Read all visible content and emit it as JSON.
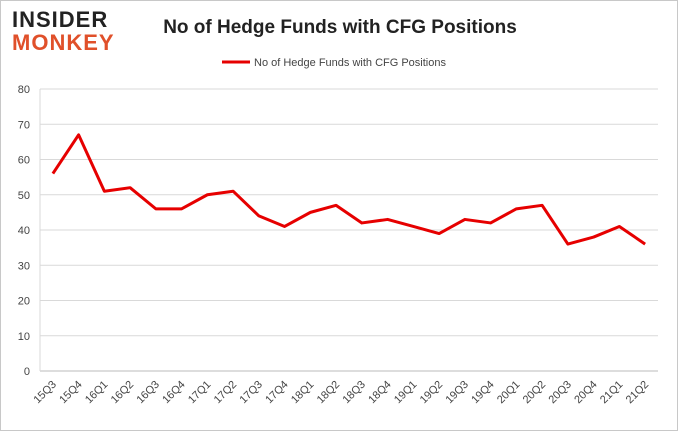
{
  "logo": {
    "line1": "INSIDER",
    "line2": "MONKEY"
  },
  "chart_data": {
    "type": "line",
    "title": "No of Hedge Funds with CFG Positions",
    "categories": [
      "15Q3",
      "15Q4",
      "16Q1",
      "16Q2",
      "16Q3",
      "16Q4",
      "17Q1",
      "17Q2",
      "17Q3",
      "17Q4",
      "18Q1",
      "18Q2",
      "18Q3",
      "18Q4",
      "19Q1",
      "19Q2",
      "19Q3",
      "19Q4",
      "20Q1",
      "20Q2",
      "20Q3",
      "20Q4",
      "21Q1",
      "21Q2"
    ],
    "series": [
      {
        "name": "No of Hedge Funds with CFG Positions",
        "color": "#e60000",
        "values": [
          56,
          67,
          51,
          52,
          46,
          46,
          50,
          51,
          44,
          41,
          45,
          47,
          42,
          43,
          41,
          39,
          43,
          42,
          46,
          47,
          36,
          38,
          41,
          36
        ]
      }
    ],
    "ylim": [
      0,
      80
    ],
    "yticks": [
      0,
      10,
      20,
      30,
      40,
      50,
      60,
      70,
      80
    ],
    "grid": true,
    "legend": "top"
  }
}
